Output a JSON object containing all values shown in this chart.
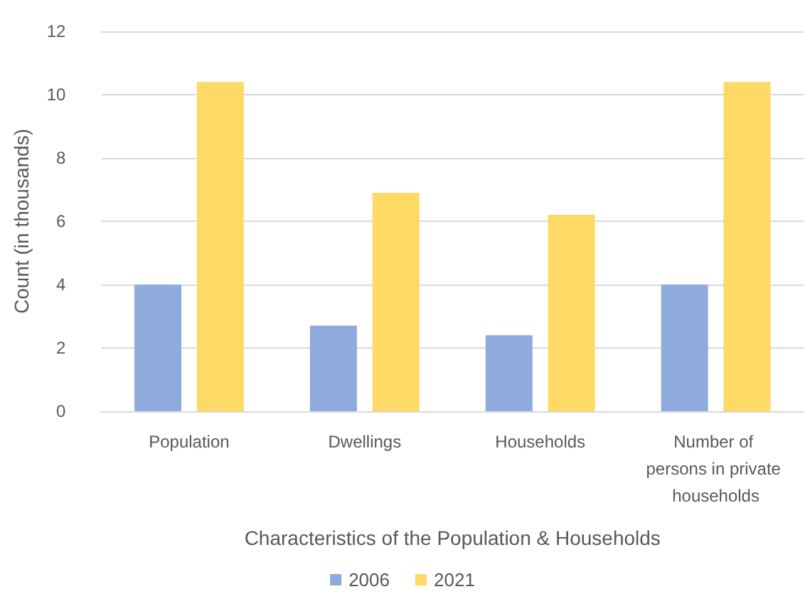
{
  "chart_data": {
    "type": "bar",
    "xlabel": "Characteristics of the Population & Households",
    "ylabel": "Count (in thousands)",
    "categories": [
      "Population",
      "Dwellings",
      "Households",
      "Number of persons in private households"
    ],
    "series": [
      {
        "name": "2006",
        "color": "#8faadc",
        "values": [
          4.0,
          2.7,
          2.4,
          4.0
        ]
      },
      {
        "name": "2021",
        "color": "#ffd966",
        "values": [
          10.4,
          6.9,
          6.2,
          10.4
        ]
      }
    ],
    "ylim": [
      0,
      12
    ],
    "yticks": [
      0,
      2,
      4,
      6,
      8,
      10,
      12
    ],
    "grid": "y",
    "legend": "bottom"
  }
}
